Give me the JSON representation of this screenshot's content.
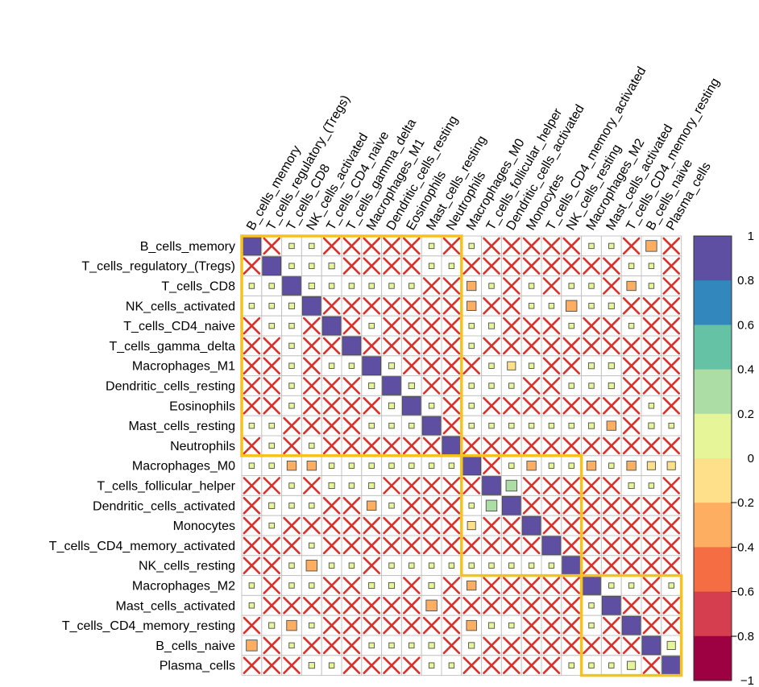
{
  "chart_data": {
    "type": "heatmap",
    "title": "",
    "variables": [
      "B_cells_memory",
      "T_cells_regulatory_(Tregs)",
      "T_cells_CD8",
      "NK_cells_activated",
      "T_cells_CD4_naive",
      "T_cells_gamma_delta",
      "Macrophages_M1",
      "Dendritic_cells_resting",
      "Eosinophils",
      "Mast_cells_resting",
      "Neutrophils",
      "Macrophages_M0",
      "T_cells_follicular_helper",
      "Dendritic_cells_activated",
      "Monocytes",
      "T_cells_CD4_memory_activated",
      "NK_cells_resting",
      "Macrophages_M2",
      "Mast_cells_activated",
      "T_cells_CD4_memory_resting",
      "B_cells_naive",
      "Plasma_cells"
    ],
    "cell_note": "Square size and color encode correlation r; a red cross marks a non-significant cell (X).",
    "matrix": [
      [
        1,
        "X",
        0.05,
        0.05,
        "X",
        "X",
        "X",
        "X",
        "X",
        0.05,
        "X",
        0.05,
        "X",
        "X",
        "X",
        "X",
        "X",
        0.05,
        0.05,
        "X",
        -0.35,
        "X"
      ],
      [
        "X",
        1,
        0.05,
        0.05,
        0.1,
        "X",
        "X",
        "X",
        "X",
        0.08,
        0.05,
        "X",
        "X",
        "X",
        "X",
        "X",
        "X",
        "X",
        "X",
        0.08,
        0.05,
        "X"
      ],
      [
        0.05,
        0.05,
        1,
        0.1,
        0.05,
        0.05,
        0.05,
        0.05,
        0.05,
        "X",
        "X",
        -0.25,
        0.05,
        "X",
        0.05,
        "X",
        0.05,
        0.05,
        "X",
        -0.25,
        0.05,
        "X"
      ],
      [
        0.05,
        0.08,
        0.1,
        1,
        "X",
        "X",
        "X",
        "X",
        "X",
        "X",
        "X",
        -0.25,
        "X",
        "X",
        0.05,
        0.05,
        -0.35,
        0.05,
        0.1,
        "X",
        "X",
        "X"
      ],
      [
        "X",
        0.05,
        0.05,
        "X",
        1,
        "X",
        0.05,
        "X",
        "X",
        "X",
        "X",
        0.05,
        0.1,
        "X",
        "X",
        "X",
        0.05,
        "X",
        "X",
        0.08,
        "X",
        "X"
      ],
      [
        "X",
        "X",
        0.05,
        "X",
        "X",
        1,
        "X",
        "X",
        "X",
        "X",
        "X",
        0.05,
        "X",
        "X",
        "X",
        "X",
        "X",
        "X",
        "X",
        "X",
        "X",
        "X"
      ],
      [
        "X",
        "X",
        0.05,
        "X",
        0.05,
        0.05,
        1,
        0.1,
        "X",
        "X",
        "X",
        "X",
        0.05,
        -0.2,
        0.05,
        "X",
        "X",
        0.1,
        0.1,
        "X",
        "X",
        "X"
      ],
      [
        "X",
        "X",
        0.05,
        "X",
        "X",
        "X",
        0.1,
        1,
        0.1,
        "X",
        "X",
        0.05,
        0.05,
        0.05,
        "X",
        "X",
        0.05,
        0.05,
        0.1,
        "X",
        "X",
        "X"
      ],
      [
        "X",
        "X",
        0.05,
        "X",
        "X",
        "X",
        "X",
        0.1,
        1,
        0.05,
        "X",
        0.05,
        "X",
        "X",
        "X",
        "X",
        "X",
        "X",
        "X",
        "X",
        0.05,
        "X"
      ],
      [
        0.05,
        0.05,
        "X",
        "X",
        "X",
        "X",
        0.05,
        0.05,
        0.05,
        1,
        "X",
        0.05,
        0.05,
        0.05,
        0.05,
        0.05,
        0.05,
        0.1,
        -0.25,
        "X",
        0.1,
        0.05
      ],
      [
        "X",
        0.05,
        "X",
        0.08,
        "X",
        "X",
        "X",
        "X",
        "X",
        "X",
        1,
        "X",
        "X",
        "X",
        "X",
        "X",
        "X",
        "X",
        "X",
        "X",
        "X",
        "X"
      ],
      [
        0.05,
        0.05,
        -0.25,
        -0.25,
        0.05,
        0.05,
        0.05,
        0.05,
        0.05,
        0.05,
        0.05,
        1,
        "X",
        0.05,
        -0.25,
        0.05,
        0.05,
        -0.25,
        0.05,
        -0.25,
        -0.2,
        -0.2
      ],
      [
        "X",
        "X",
        0.05,
        "X",
        0.1,
        0.05,
        0.1,
        "X",
        "X",
        "X",
        "X",
        "X",
        1,
        0.35,
        "X",
        "X",
        "X",
        "X",
        "X",
        0.1,
        0.05,
        "X"
      ],
      [
        "X",
        0.1,
        0.05,
        0.05,
        "X",
        "X",
        -0.25,
        0.05,
        "X",
        "X",
        "X",
        0.05,
        0.35,
        1,
        "X",
        "X",
        "X",
        "X",
        "X",
        "X",
        "X",
        "X"
      ],
      [
        "X",
        0.05,
        "X",
        "X",
        "X",
        "X",
        "X",
        "X",
        "X",
        "X",
        "X",
        -0.2,
        "X",
        "X",
        1,
        "X",
        "X",
        "X",
        "X",
        "X",
        "X",
        "X"
      ],
      [
        "X",
        "X",
        "X",
        0.05,
        "X",
        "X",
        "X",
        "X",
        "X",
        "X",
        "X",
        "X",
        "X",
        "X",
        "X",
        1,
        "X",
        "X",
        "X",
        "X",
        "X",
        "X"
      ],
      [
        "X",
        "X",
        0.05,
        -0.35,
        0.05,
        0.05,
        "X",
        0.05,
        0.05,
        0.05,
        0.05,
        0.05,
        0.05,
        0.05,
        0.05,
        0.05,
        1,
        "X",
        "X",
        "X",
        "X",
        "X"
      ],
      [
        0.05,
        "X",
        0.05,
        0.05,
        "X",
        "X",
        0.1,
        0.1,
        "X",
        0.1,
        "X",
        -0.25,
        "X",
        "X",
        "X",
        "X",
        "X",
        1,
        0.05,
        0.05,
        "X",
        0.05
      ],
      [
        0.05,
        "X",
        "X",
        "X",
        "X",
        "X",
        "X",
        "X",
        "X",
        -0.35,
        "X",
        "X",
        "X",
        "X",
        "X",
        "X",
        "X",
        0.05,
        1,
        "X",
        "X",
        "X"
      ],
      [
        "X",
        0.1,
        -0.3,
        0.05,
        "X",
        "X",
        "X",
        "X",
        "X",
        "X",
        "X",
        -0.3,
        0.1,
        0.05,
        "X",
        "X",
        "X",
        0.05,
        "X",
        1,
        "X",
        "X"
      ],
      [
        -0.35,
        "X",
        0.05,
        "X",
        "X",
        "X",
        0.05,
        0.05,
        0.05,
        0.1,
        "X",
        0.1,
        "X",
        "X",
        "X",
        "X",
        "X",
        "X",
        "X",
        "X",
        1,
        0.2
      ],
      [
        "X",
        "X",
        "X",
        0.1,
        0.05,
        "X",
        "X",
        "X",
        "X",
        0.05,
        0.05,
        "X",
        "X",
        "X",
        "X",
        "X",
        0.05,
        0.05,
        0.05,
        0.2,
        "X",
        1
      ]
    ],
    "clusters": [
      [
        1,
        11
      ],
      [
        12,
        17
      ],
      [
        18,
        22
      ]
    ],
    "colorbar": {
      "ticks": [
        "1",
        "0.8",
        "0.6",
        "0.4",
        "0.2",
        "0",
        "−0.2",
        "−0.4",
        "−0.6",
        "−0.8",
        "−1"
      ],
      "bins": [
        "#5e4fa2",
        "#3288bd",
        "#66c2a5",
        "#abdda4",
        "#e6f598",
        "#fee08b",
        "#fdae61",
        "#f46d43",
        "#d53e4f",
        "#9e0142"
      ],
      "range": [
        -1,
        1
      ]
    },
    "colors": {
      "cross": "#d9302a",
      "cluster_box": "#f7c21b",
      "grid": "#c4c4c4"
    }
  }
}
